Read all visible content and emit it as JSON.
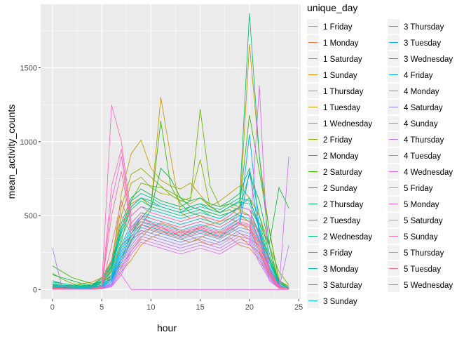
{
  "chart_data": {
    "type": "line",
    "xlabel": "hour",
    "ylabel": "mean_activity_counts",
    "xlim": [
      -1.2,
      25.2
    ],
    "ylim": [
      -65,
      1930
    ],
    "x_ticks": [
      0,
      5,
      10,
      15,
      20,
      25
    ],
    "y_ticks": [
      0,
      500,
      1000,
      1500
    ],
    "grid": true,
    "legend_title": "unique_day",
    "legend_position": "right",
    "x": [
      0,
      1,
      2,
      3,
      4,
      5,
      6,
      7,
      8,
      9,
      10,
      11,
      12,
      13,
      14,
      15,
      16,
      17,
      18,
      19,
      20,
      21,
      22,
      23,
      24
    ],
    "series": [
      {
        "name": "1 Friday",
        "color": "#F8766D",
        "values": [
          30,
          20,
          15,
          10,
          20,
          60,
          150,
          300,
          360,
          400,
          380,
          420,
          390,
          360,
          400,
          410,
          380,
          350,
          420,
          380,
          340,
          300,
          150,
          40,
          10
        ]
      },
      {
        "name": "1 Monday",
        "color": "#F17D51",
        "values": [
          25,
          10,
          5,
          8,
          15,
          30,
          80,
          200,
          340,
          380,
          420,
          400,
          370,
          390,
          360,
          330,
          300,
          320,
          350,
          300,
          280,
          200,
          100,
          30,
          5
        ]
      },
      {
        "name": "1 Saturday",
        "color": "#E7851E",
        "values": [
          20,
          15,
          10,
          12,
          25,
          40,
          70,
          150,
          260,
          350,
          420,
          450,
          430,
          400,
          380,
          420,
          440,
          460,
          480,
          450,
          400,
          320,
          180,
          50,
          10
        ]
      },
      {
        "name": "1 Sunday",
        "color": "#DA8E00",
        "values": [
          35,
          25,
          30,
          40,
          50,
          80,
          60,
          120,
          200,
          300,
          350,
          380,
          360,
          340,
          320,
          350,
          380,
          390,
          370,
          360,
          300,
          250,
          120,
          60,
          20
        ]
      },
      {
        "name": "1 Thursday",
        "color": "#CB9600",
        "values": [
          15,
          10,
          8,
          6,
          10,
          30,
          120,
          420,
          580,
          620,
          560,
          1300,
          900,
          520,
          480,
          500,
          460,
          440,
          480,
          520,
          1660,
          900,
          400,
          60,
          10
        ]
      },
      {
        "name": "1 Tuesday",
        "color": "#B99E00",
        "values": [
          20,
          15,
          12,
          10,
          15,
          50,
          150,
          650,
          920,
          1010,
          820,
          740,
          700,
          680,
          720,
          640,
          560,
          600,
          650,
          700,
          620,
          500,
          300,
          50,
          10
        ]
      },
      {
        "name": "1 Wednesday",
        "color": "#A3A500",
        "values": [
          25,
          18,
          12,
          15,
          20,
          40,
          130,
          500,
          720,
          760,
          690,
          650,
          640,
          600,
          580,
          620,
          560,
          520,
          560,
          540,
          500,
          380,
          200,
          50,
          10
        ]
      },
      {
        "name": "2 Friday",
        "color": "#8AAB00",
        "values": [
          40,
          30,
          20,
          15,
          25,
          70,
          200,
          560,
          780,
          820,
          760,
          700,
          640,
          600,
          620,
          880,
          560,
          520,
          540,
          500,
          460,
          400,
          210,
          60,
          20
        ]
      },
      {
        "name": "2 Monday",
        "color": "#68B100",
        "values": [
          110,
          70,
          40,
          30,
          25,
          40,
          100,
          320,
          600,
          720,
          700,
          690,
          660,
          620,
          600,
          1220,
          700,
          560,
          580,
          560,
          540,
          450,
          300,
          120,
          30
        ]
      },
      {
        "name": "2 Saturday",
        "color": "#39B600",
        "values": [
          160,
          120,
          80,
          60,
          40,
          50,
          90,
          200,
          380,
          480,
          560,
          1140,
          700,
          580,
          520,
          500,
          480,
          460,
          500,
          560,
          1180,
          800,
          410,
          60,
          20
        ]
      },
      {
        "name": "2 Sunday",
        "color": "#00BA38",
        "values": [
          100,
          80,
          60,
          40,
          30,
          40,
          70,
          180,
          330,
          430,
          540,
          820,
          750,
          620,
          560,
          540,
          520,
          500,
          520,
          550,
          780,
          600,
          300,
          690,
          550
        ]
      },
      {
        "name": "2 Thursday",
        "color": "#00BC58",
        "values": [
          60,
          40,
          30,
          25,
          30,
          80,
          180,
          450,
          620,
          680,
          640,
          600,
          580,
          560,
          600,
          620,
          580,
          560,
          600,
          650,
          820,
          500,
          250,
          40,
          10
        ]
      },
      {
        "name": "2 Tuesday",
        "color": "#00BE70",
        "values": [
          30,
          25,
          20,
          18,
          20,
          60,
          160,
          400,
          560,
          620,
          600,
          560,
          540,
          520,
          560,
          580,
          540,
          520,
          560,
          600,
          1870,
          900,
          300,
          30,
          5
        ]
      },
      {
        "name": "2 Wednesday",
        "color": "#00C086",
        "values": [
          20,
          15,
          12,
          10,
          15,
          40,
          140,
          380,
          540,
          600,
          560,
          540,
          520,
          500,
          520,
          540,
          500,
          480,
          520,
          560,
          620,
          420,
          200,
          30,
          5
        ]
      },
      {
        "name": "3 Friday",
        "color": "#00C19C",
        "values": [
          50,
          40,
          30,
          25,
          30,
          70,
          170,
          420,
          600,
          650,
          620,
          580,
          560,
          540,
          560,
          580,
          560,
          540,
          580,
          620,
          600,
          450,
          220,
          50,
          10
        ]
      },
      {
        "name": "3 Monday",
        "color": "#00C1B2",
        "values": [
          40,
          30,
          25,
          20,
          25,
          60,
          150,
          400,
          560,
          620,
          580,
          560,
          540,
          520,
          540,
          560,
          540,
          520,
          560,
          590,
          580,
          420,
          200,
          40,
          10
        ]
      },
      {
        "name": "3 Saturday",
        "color": "#00BFC4",
        "values": [
          30,
          25,
          20,
          18,
          20,
          50,
          120,
          350,
          500,
          560,
          540,
          520,
          500,
          480,
          500,
          520,
          500,
          480,
          520,
          560,
          540,
          380,
          180,
          40,
          10
        ]
      },
      {
        "name": "3 Sunday",
        "color": "#00BBD7",
        "values": [
          20,
          18,
          15,
          12,
          15,
          40,
          100,
          300,
          450,
          520,
          500,
          480,
          460,
          440,
          460,
          480,
          460,
          440,
          480,
          520,
          500,
          340,
          160,
          30,
          5
        ]
      },
      {
        "name": "3 Thursday",
        "color": "#00B7E7",
        "values": [
          15,
          12,
          10,
          8,
          10,
          30,
          90,
          280,
          420,
          500,
          480,
          460,
          440,
          420,
          440,
          460,
          440,
          420,
          460,
          500,
          480,
          320,
          150,
          25,
          5
        ]
      },
      {
        "name": "3 Tuesday",
        "color": "#00B1F4",
        "values": [
          12,
          10,
          8,
          6,
          8,
          25,
          80,
          260,
          400,
          480,
          460,
          440,
          420,
          400,
          420,
          440,
          420,
          400,
          440,
          480,
          460,
          300,
          140,
          20,
          5
        ]
      },
      {
        "name": "3 Wednesday",
        "color": "#00A9FF",
        "values": [
          10,
          8,
          6,
          5,
          6,
          20,
          70,
          240,
          380,
          460,
          440,
          420,
          400,
          380,
          400,
          420,
          400,
          380,
          420,
          460,
          1050,
          400,
          130,
          20,
          5
        ]
      },
      {
        "name": "4 Friday",
        "color": "#00A0FF",
        "values": [
          8,
          6,
          5,
          4,
          5,
          18,
          60,
          220,
          360,
          440,
          420,
          400,
          380,
          360,
          380,
          400,
          380,
          360,
          400,
          440,
          800,
          380,
          120,
          15,
          5
        ]
      },
      {
        "name": "4 Monday",
        "color": "#4D96FF",
        "values": [
          6,
          5,
          4,
          3,
          4,
          15,
          50,
          200,
          340,
          420,
          400,
          380,
          360,
          340,
          360,
          380,
          360,
          340,
          380,
          420,
          400,
          260,
          110,
          15,
          5
        ]
      },
      {
        "name": "4 Saturday",
        "color": "#7E8BFF",
        "values": [
          5,
          4,
          3,
          2,
          3,
          12,
          40,
          180,
          320,
          400,
          380,
          360,
          340,
          320,
          340,
          360,
          340,
          320,
          360,
          400,
          380,
          240,
          100,
          10,
          5
        ]
      },
      {
        "name": "4 Sunday",
        "color": "#A180FF",
        "values": [
          280,
          4,
          3,
          2,
          3,
          10,
          35,
          160,
          300,
          380,
          360,
          340,
          320,
          300,
          320,
          340,
          320,
          300,
          340,
          380,
          360,
          220,
          90,
          10,
          5
        ]
      },
      {
        "name": "4 Thursday",
        "color": "#BB75FF",
        "values": [
          4,
          3,
          2,
          2,
          2,
          8,
          30,
          140,
          280,
          360,
          340,
          320,
          300,
          280,
          300,
          320,
          300,
          280,
          320,
          360,
          340,
          200,
          80,
          10,
          300
        ]
      },
      {
        "name": "4 Tuesday",
        "color": "#D06DFD",
        "values": [
          3,
          2,
          2,
          1,
          2,
          6,
          25,
          120,
          260,
          340,
          320,
          300,
          280,
          260,
          280,
          300,
          280,
          260,
          300,
          340,
          320,
          180,
          70,
          8,
          900
        ]
      },
      {
        "name": "4 Wednesday",
        "color": "#E166F2",
        "values": [
          2,
          2,
          1,
          1,
          1,
          5,
          20,
          100,
          240,
          320,
          300,
          280,
          260,
          240,
          260,
          280,
          260,
          240,
          280,
          320,
          300,
          1380,
          60,
          8,
          5
        ]
      },
      {
        "name": "5 Friday",
        "color": "#EC62E4",
        "values": [
          2,
          1,
          1,
          1,
          1,
          5,
          20,
          100,
          0,
          0,
          0,
          0,
          0,
          0,
          0,
          0,
          0,
          0,
          0,
          0,
          0,
          0,
          0,
          0,
          0
        ]
      },
      {
        "name": "5 Monday",
        "color": "#F564D4",
        "values": [
          3,
          2,
          2,
          1,
          2,
          8,
          600,
          900,
          400,
          500,
          450,
          420,
          400,
          380,
          400,
          420,
          400,
          380,
          420,
          450,
          430,
          280,
          100,
          10,
          5
        ]
      },
      {
        "name": "5 Saturday",
        "color": "#FA69C1",
        "values": [
          4,
          3,
          2,
          2,
          3,
          10,
          1250,
          1000,
          500,
          560,
          520,
          500,
          480,
          460,
          480,
          500,
          480,
          460,
          500,
          560,
          540,
          360,
          150,
          20,
          5
        ]
      },
      {
        "name": "5 Sunday",
        "color": "#FF6DAE",
        "values": [
          5,
          4,
          3,
          2,
          3,
          12,
          700,
          950,
          450,
          520,
          480,
          460,
          440,
          420,
          440,
          460,
          440,
          420,
          460,
          520,
          500,
          330,
          130,
          15,
          5
        ]
      },
      {
        "name": "5 Thursday",
        "color": "#FF6E99",
        "values": [
          6,
          5,
          4,
          3,
          4,
          15,
          500,
          800,
          420,
          480,
          450,
          430,
          410,
          390,
          410,
          430,
          410,
          390,
          430,
          480,
          460,
          300,
          120,
          15,
          5
        ]
      },
      {
        "name": "5 Tuesday",
        "color": "#FF6E84",
        "values": [
          8,
          6,
          5,
          4,
          5,
          18,
          300,
          600,
          400,
          460,
          430,
          410,
          390,
          370,
          390,
          410,
          390,
          370,
          410,
          460,
          440,
          280,
          110,
          12,
          5
        ]
      },
      {
        "name": "5 Wednesday",
        "color": "#FA6E72",
        "values": [
          10,
          8,
          6,
          5,
          6,
          20,
          200,
          500,
          380,
          440,
          410,
          390,
          370,
          350,
          370,
          390,
          370,
          350,
          390,
          440,
          420,
          260,
          100,
          10,
          5
        ]
      }
    ]
  }
}
